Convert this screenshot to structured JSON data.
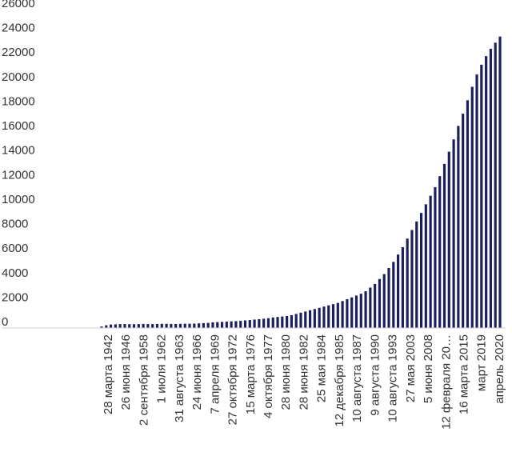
{
  "chart_data": {
    "type": "bar",
    "title": "",
    "xlabel": "",
    "ylabel": "",
    "ylim": [
      0,
      26000
    ],
    "yticks": [
      0,
      2000,
      4000,
      6000,
      8000,
      10000,
      12000,
      14000,
      16000,
      18000,
      20000,
      22000,
      24000,
      26000
    ],
    "bar_color": "#1b1f5c",
    "grid": false,
    "legend": "none",
    "x_tick_labels": [
      "28 марта 1942",
      "26 июня 1946",
      "2 сентября 1958",
      "1 июля 1962",
      "31 августа 1963",
      "24 июня 1966",
      "7 апреля 1969",
      "27 октября 1972",
      "15 марта 1976",
      "4 октября 1977",
      "28 июня 1980",
      "28 июня 1982",
      "25 мая 1984",
      "12 декабря 1985",
      "10 августа 1987",
      "9 августа 1990",
      "10 августа 1993",
      "27 мая 2003",
      "5 июня 2008",
      "12 февраля 20…",
      "16 марта 2015",
      "март 2019",
      "апрель 2020"
    ],
    "values": [
      120,
      220,
      280,
      300,
      320,
      320,
      310,
      310,
      320,
      330,
      320,
      320,
      330,
      340,
      340,
      330,
      330,
      340,
      350,
      350,
      360,
      380,
      400,
      420,
      460,
      480,
      500,
      520,
      540,
      560,
      580,
      620,
      650,
      690,
      720,
      760,
      800,
      860,
      900,
      940,
      980,
      1050,
      1150,
      1250,
      1350,
      1450,
      1550,
      1650,
      1750,
      1850,
      1950,
      2050,
      2200,
      2350,
      2500,
      2650,
      2800,
      3000,
      3300,
      3600,
      4000,
      4400,
      4900,
      5400,
      6000,
      6600,
      7300,
      8000,
      8700,
      9400,
      10100,
      10800,
      11500,
      12400,
      13400,
      14400,
      15400,
      16500,
      17500,
      18600,
      19700,
      20700,
      21500,
      22200,
      22800,
      23300,
      23800
    ]
  }
}
